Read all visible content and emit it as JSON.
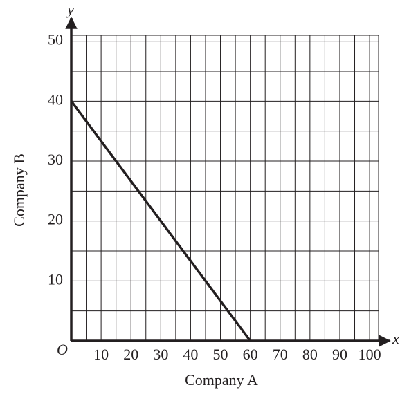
{
  "chart_data": {
    "type": "line",
    "xlabel": "Company A",
    "ylabel": "Company B",
    "x_axis_letter": "x",
    "y_axis_letter": "y",
    "origin_label": "O",
    "x": [
      0,
      60
    ],
    "series": [
      {
        "name": null,
        "color": "#231f20",
        "values": [
          40,
          0
        ]
      }
    ],
    "xlim": [
      0,
      103
    ],
    "ylim": [
      0,
      51
    ],
    "xticks": [
      10,
      20,
      30,
      40,
      50,
      60,
      70,
      80,
      90,
      100
    ],
    "yticks": [
      10,
      20,
      30,
      40,
      50
    ],
    "grid": true,
    "minor_grid": true
  }
}
